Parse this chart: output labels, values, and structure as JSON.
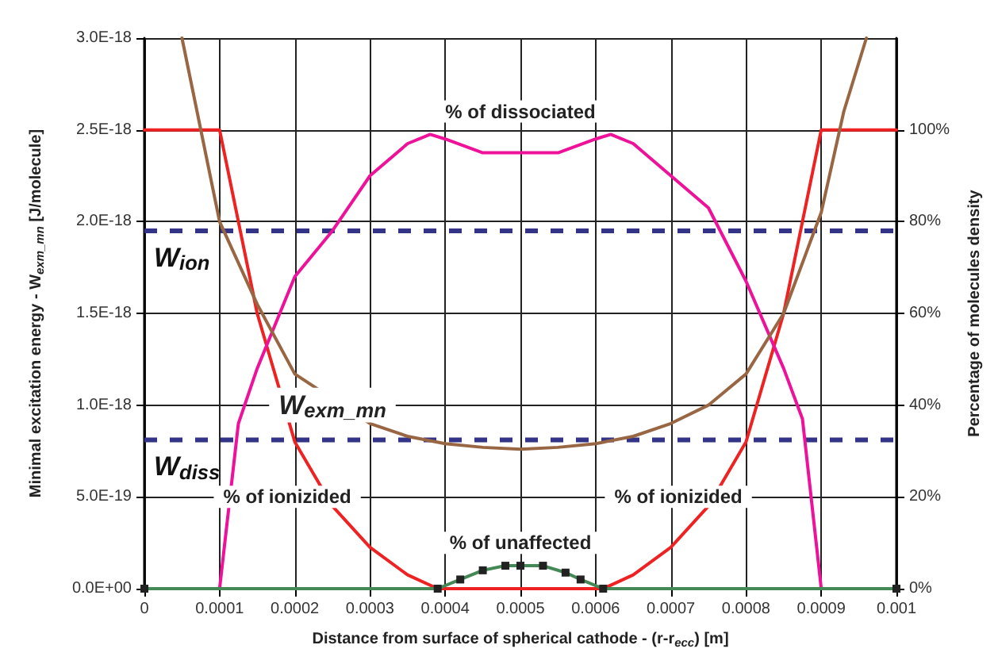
{
  "chart_data": {
    "type": "line",
    "xlabel": "Distance from surface of spherical cathode - (r-r$_{ecc}$) [m]",
    "ylabel": "Minimal excitation energy - W$_{exm_mn}$ [J/molecule]",
    "y2label": "Percentage of molecules density",
    "xlim": [
      0,
      0.001
    ],
    "xticks": [
      0,
      0.0001,
      0.0002,
      0.0003,
      0.0004,
      0.0005,
      0.0006,
      0.0007,
      0.0008,
      0.0009,
      0.001
    ],
    "ylim": [
      0,
      3e-18
    ],
    "yticks": [
      {
        "value": 0,
        "label": "0.0E+00"
      },
      {
        "value": 5e-19,
        "label": "5.0E-19"
      },
      {
        "value": 1e-18,
        "label": "1.0E-18"
      },
      {
        "value": 1.5e-18,
        "label": "1.5E-18"
      },
      {
        "value": 2e-18,
        "label": "2.0E-18"
      },
      {
        "value": 2.5e-18,
        "label": "2.5E-18"
      },
      {
        "value": 3e-18,
        "label": "3.0E-18"
      }
    ],
    "y2lim": [
      0,
      120
    ],
    "y2ticks": [
      {
        "value": 0,
        "label": "0%"
      },
      {
        "value": 20,
        "label": "20%"
      },
      {
        "value": 40,
        "label": "40%"
      },
      {
        "value": 60,
        "label": "60%"
      },
      {
        "value": 80,
        "label": "80%"
      },
      {
        "value": 100,
        "label": "100%"
      }
    ],
    "grid": true,
    "marker": "none",
    "line_style": "solid",
    "series": [
      {
        "color": "#ee2222",
        "axis": "y2",
        "x": [
          0,
          0.0001,
          0.00015,
          0.0002,
          0.00025,
          0.0003,
          0.00035,
          0.00039,
          0.0005,
          0.00061,
          0.00065,
          0.0007,
          0.00075,
          0.0008,
          0.00085,
          0.0009,
          0.001
        ],
        "values": [
          100,
          100,
          60,
          32,
          18,
          9,
          3,
          0,
          0,
          0,
          3,
          9,
          18,
          32,
          60,
          100,
          100
        ]
      },
      {
        "color": "#ee1199",
        "axis": "y2",
        "x": [
          0.0001,
          0.000125,
          0.00015,
          0.0002,
          0.00025,
          0.0003,
          0.00035,
          0.00038,
          0.0004,
          0.00045,
          0.0005,
          0.00055,
          0.0006,
          0.00062,
          0.00065,
          0.0007,
          0.00075,
          0.0008,
          0.00085,
          0.000875,
          0.0009
        ],
        "values": [
          0,
          36,
          48,
          68,
          78,
          90,
          97,
          99,
          98,
          95,
          95,
          95,
          98,
          99,
          97,
          90,
          83,
          67,
          48,
          37,
          0
        ]
      },
      {
        "color": "#448855",
        "axis": "y2",
        "marker": "square",
        "x": [
          0,
          0.00039,
          0.00042,
          0.00045,
          0.00048,
          0.0005,
          0.00053,
          0.00056,
          0.00058,
          0.00061,
          0.001
        ],
        "values": [
          0,
          0,
          2,
          4,
          5,
          5,
          5,
          3.5,
          2,
          0,
          0
        ]
      },
      {
        "color": "#996644",
        "x": [
          5e-05,
          0.0001,
          0.00015,
          0.0002,
          0.0003,
          0.00035,
          0.0004,
          0.00045,
          0.0005,
          0.00055,
          0.0006,
          0.00065,
          0.0007,
          0.00075,
          0.0008,
          0.00085,
          0.0009,
          0.00093,
          0.00096
        ],
        "values": [
          3e-18,
          2e-18,
          1.55e-18,
          1.17e-18,
          9e-19,
          8.3e-19,
          7.9e-19,
          7.7e-19,
          7.6e-19,
          7.7e-19,
          7.9e-19,
          8.3e-19,
          9e-19,
          1e-18,
          1.17e-18,
          1.5e-18,
          2.05e-18,
          2.6e-18,
          3e-18
        ]
      }
    ],
    "ref_lines": [
      {
        "axis": "y",
        "value": 1.95e-18,
        "label": "W$_{ion}$",
        "color": "#333388",
        "line_style": "dashed"
      },
      {
        "axis": "y",
        "value": 8.1e-19,
        "label": "W$_{diss}$",
        "color": "#333388",
        "line_style": "dashed"
      }
    ],
    "annotations": [
      "% of dissociated",
      "W$_{exm_mn}$",
      "% of ionizided",
      "% of ionizided",
      "% of unaffected"
    ]
  }
}
